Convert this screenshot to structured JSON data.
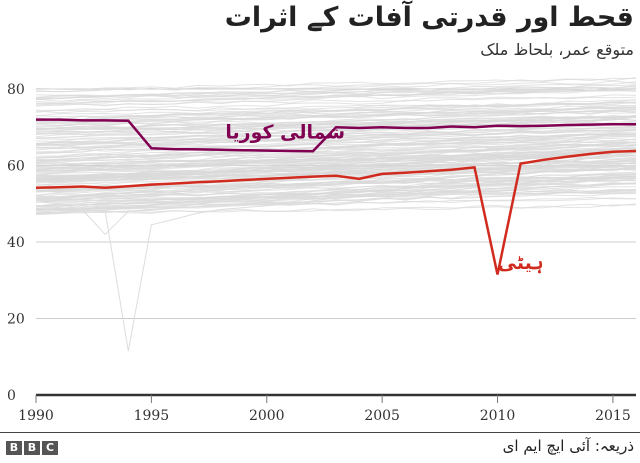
{
  "header": {
    "title": "قحط اور قدرتی آفات کے اثرات",
    "subtitle": "متوقع عمر، بلحاظ ملک"
  },
  "footer": {
    "logo_letters": [
      "B",
      "B",
      "C"
    ],
    "source": "ذریعہ: آئی ایچ ایم ای"
  },
  "colors": {
    "background_lines": "#d9d9d9",
    "gridline": "#cccccc",
    "axis": "#333333",
    "north_korea": "#800052",
    "haiti": "#d12a1e"
  },
  "chart_data": {
    "type": "line",
    "title": "قحط اور قدرتی آفات کے اثرات",
    "subtitle": "متوقع عمر، بلحاظ ملک",
    "xlabel": "",
    "ylabel": "",
    "x": [
      1990,
      1991,
      1992,
      1993,
      1994,
      1995,
      1996,
      1997,
      1998,
      1999,
      2000,
      2001,
      2002,
      2003,
      2004,
      2005,
      2006,
      2007,
      2008,
      2009,
      2010,
      2011,
      2012,
      2013,
      2014,
      2015,
      2016
    ],
    "xlim": [
      1990,
      2016
    ],
    "ylim": [
      0,
      80
    ],
    "x_ticks": [
      1990,
      1995,
      2000,
      2005,
      2010,
      2015
    ],
    "y_ticks": [
      0,
      20,
      40,
      60,
      80
    ],
    "grid": "horizontal",
    "legend": "inline labels",
    "series": [
      {
        "name": "شمالی کوریا",
        "name_en": "North Korea",
        "color": "#800052",
        "values": [
          72.0,
          72.0,
          71.8,
          71.8,
          71.7,
          64.5,
          64.3,
          64.2,
          64.1,
          64.0,
          63.9,
          63.8,
          63.7,
          70.0,
          69.8,
          70.0,
          69.8,
          69.8,
          70.2,
          70.0,
          70.4,
          70.3,
          70.4,
          70.6,
          70.7,
          70.8,
          70.8
        ],
        "label_position": {
          "year": 2000.8,
          "value": 67.0
        }
      },
      {
        "name": "ہیٹی",
        "name_en": "Haiti",
        "color": "#d12a1e",
        "values": [
          54.2,
          54.3,
          54.5,
          54.2,
          54.6,
          55.0,
          55.3,
          55.6,
          55.9,
          56.2,
          56.5,
          56.8,
          57.1,
          57.3,
          56.5,
          57.8,
          58.1,
          58.5,
          58.9,
          59.5,
          31.5,
          60.5,
          61.5,
          62.3,
          63.0,
          63.6,
          63.8
        ],
        "label_position": {
          "year": 2011.0,
          "value": 33.0
        }
      },
      {
        "name": "background-outlier-a",
        "color": "#dddddd",
        "values": [
          49.5,
          49.0,
          48.5,
          48.0,
          11.5,
          44.5,
          46.0,
          47.5,
          48.5,
          49.0,
          49.5,
          50.0,
          50.8,
          51.5,
          52.3,
          53.0,
          54.0,
          55.0,
          56.0,
          57.0,
          58.0,
          59.0,
          60.0,
          61.0,
          62.0,
          63.0,
          64.0
        ]
      },
      {
        "name": "background-outlier-b",
        "color": "#dddddd",
        "values": [
          50.5,
          50.0,
          48.5,
          42.0,
          48.0,
          48.5,
          49.0,
          49.2,
          49.5,
          49.8,
          50.0,
          50.3,
          50.5,
          50.8,
          51.0,
          51.5,
          52.0,
          52.5,
          53.0,
          53.5,
          54.0,
          54.5,
          55.0,
          55.5,
          56.0,
          56.5,
          57.0
        ]
      }
    ],
    "background_band": {
      "description": "~190 other countries drawn as thin light grey lines",
      "range_1990": [
        47,
        80
      ],
      "range_2016": [
        50,
        84
      ]
    }
  }
}
